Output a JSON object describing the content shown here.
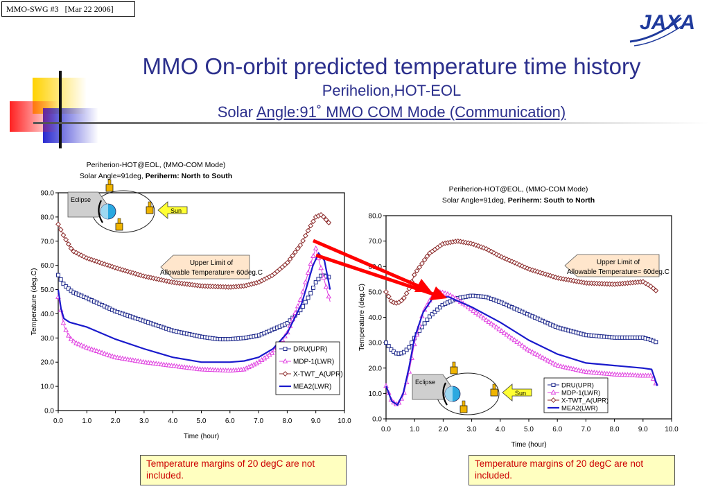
{
  "header": {
    "slide_tag": "MMO-SWG #3   [Mar 22 2006]",
    "logo_text": "JAXA",
    "title": "MMO On-orbit predicted temperature time history",
    "subtitle1": "Perihelion,HOT-EOL",
    "subtitle2_prefix": "Solar ",
    "subtitle2_underlined": "Angle:91˚  MMO COM Mode (Communication)"
  },
  "notes": {
    "left": "Temperature margins of 20 degC are not included.",
    "right": "Temperature margins of 20 degC are not included."
  },
  "chart_data": [
    {
      "type": "line",
      "title_line1": "Periherion-HOT@EOL, (MMO-COM Mode)",
      "title_line2_normal": "Solar Angle=91deg, ",
      "title_line2_bold": "Periherm: North to South",
      "xlabel": "Time (hour)",
      "ylabel": "Temperature (deg.C)",
      "xlim": [
        0,
        10
      ],
      "ylim": [
        0,
        90
      ],
      "xticks": [
        "0.0",
        "1.0",
        "2.0",
        "3.0",
        "4.0",
        "5.0",
        "6.0",
        "7.0",
        "8.0",
        "9.0",
        "10.0"
      ],
      "yticks": [
        "0.0",
        "10.0",
        "20.0",
        "30.0",
        "40.0",
        "50.0",
        "60.0",
        "70.0",
        "80.0",
        "90.0"
      ],
      "legend_position": "bottom-right",
      "annotation": "Upper Limit of Allowable Temperature= 60deg.C",
      "inset": {
        "eclipse": "Eclipse",
        "sun": "Sun"
      },
      "series": [
        {
          "name": "DRU(UPR)",
          "color": "#1f2a8c",
          "marker": "square",
          "x": [
            0,
            0.2,
            0.5,
            1,
            2,
            3,
            4,
            5,
            5.6,
            6,
            6.5,
            7,
            7.5,
            8,
            8.5,
            8.8,
            9,
            9.2,
            9.5
          ],
          "y": [
            56,
            52,
            49,
            46.5,
            41,
            37,
            33,
            30.5,
            29.5,
            29.5,
            30,
            31,
            33.5,
            36,
            42,
            48,
            53,
            56,
            55
          ]
        },
        {
          "name": "MDP-1(LWR)",
          "color": "#e040e0",
          "marker": "triangle",
          "x": [
            0,
            0.2,
            0.4,
            0.6,
            1,
            1.5,
            2,
            3,
            4,
            5,
            6,
            6.5,
            7,
            7.5,
            8,
            8.5,
            8.8,
            9,
            9.2,
            9.5
          ],
          "y": [
            47,
            35,
            30,
            28,
            26,
            24,
            22,
            20,
            18.5,
            17,
            16.5,
            17,
            20,
            24,
            32,
            47,
            60,
            67,
            58,
            45
          ]
        },
        {
          "name": "X-TWT_A(UPR)",
          "color": "#8b2a2a",
          "marker": "diamond",
          "x": [
            0,
            0.2,
            0.5,
            1,
            2,
            3,
            4,
            5,
            6,
            6.5,
            7,
            7.5,
            8,
            8.5,
            8.8,
            9,
            9.2,
            9.5
          ],
          "y": [
            77,
            72,
            66,
            63,
            59,
            55.5,
            53,
            51.5,
            51,
            51.5,
            53,
            56,
            61,
            69,
            76,
            80,
            81,
            77
          ]
        },
        {
          "name": "MEA2(LWR)",
          "color": "#1a1acc",
          "marker": "none",
          "x": [
            0,
            0.1,
            0.2,
            0.4,
            1,
            2,
            3,
            4,
            5,
            6,
            6.5,
            7,
            7.5,
            8,
            8.5,
            8.9,
            9.1,
            9.3,
            9.5
          ],
          "y": [
            50,
            42,
            38,
            36.5,
            34.5,
            29.5,
            25.5,
            22,
            20,
            20,
            20.5,
            22,
            25.5,
            32,
            44,
            60,
            65,
            62,
            50
          ]
        }
      ]
    },
    {
      "type": "line",
      "title_line1": "Periherion-HOT@EOL, (MMO-COM Mode)",
      "title_line2_normal": "Solar Angle=91deg, ",
      "title_line2_bold": "Periherm: South to North",
      "xlabel": "Time (hour)",
      "ylabel": "Temperature (deg.C)",
      "xlim": [
        0,
        10
      ],
      "ylim": [
        0,
        80
      ],
      "xticks": [
        "0.0",
        "1.0",
        "2.0",
        "3.0",
        "4.0",
        "5.0",
        "6.0",
        "7.0",
        "8.0",
        "9.0",
        "10.0"
      ],
      "yticks": [
        "0.0",
        "10.0",
        "20.0",
        "30.0",
        "40.0",
        "50.0",
        "60.0",
        "70.0",
        "80.0"
      ],
      "legend_position": "bottom-right",
      "annotation": "Upper Limit of Allowable Temperature= 60deg.C",
      "inset": {
        "eclipse": "Eclipse",
        "sun": "Sun"
      },
      "series": [
        {
          "name": "DRU(UPR)",
          "color": "#1f2a8c",
          "marker": "square",
          "x": [
            0,
            0.2,
            0.4,
            0.6,
            0.8,
            1,
            1.5,
            2,
            2.5,
            3,
            3.5,
            4,
            5,
            6,
            7,
            8,
            9,
            9.3,
            9.5
          ],
          "y": [
            30,
            27,
            25.5,
            26,
            28,
            32,
            40,
            45,
            47.5,
            48.5,
            48,
            46,
            41,
            36,
            33,
            32,
            32,
            31,
            30
          ]
        },
        {
          "name": "MDP-1(LWR)",
          "color": "#e040e0",
          "marker": "triangle",
          "x": [
            0,
            0.2,
            0.4,
            0.6,
            0.8,
            1,
            1.3,
            1.6,
            1.9,
            2.2,
            2.5,
            3,
            4,
            5,
            6,
            7,
            8,
            9,
            9.3,
            9.5
          ],
          "y": [
            13,
            7,
            5.5,
            9,
            18,
            30,
            42,
            48,
            50,
            49,
            47,
            43,
            35,
            27,
            21,
            18.5,
            17.5,
            17,
            17,
            13
          ]
        },
        {
          "name": "X-TWT_A(UPR)",
          "color": "#8b2a2a",
          "marker": "diamond",
          "x": [
            0,
            0.2,
            0.4,
            0.6,
            0.8,
            1,
            1.5,
            2,
            2.5,
            3,
            3.5,
            4,
            5,
            6,
            7,
            8,
            9,
            9.3,
            9.5
          ],
          "y": [
            50,
            46,
            45.5,
            47,
            51,
            57,
            65,
            69,
            70,
            69,
            67,
            64,
            59,
            55.5,
            53.5,
            53,
            54,
            52,
            50
          ]
        },
        {
          "name": "MEA2(LWR)",
          "color": "#1a1acc",
          "marker": "none",
          "x": [
            0,
            0.2,
            0.4,
            0.6,
            0.8,
            1,
            1.3,
            1.6,
            1.9,
            2.2,
            2.5,
            3,
            4,
            5,
            6,
            7,
            8,
            9,
            9.3,
            9.5
          ],
          "y": [
            13,
            7,
            5.5,
            10,
            20,
            32,
            42,
            47,
            48,
            48,
            46.5,
            44,
            38,
            31,
            25.5,
            22,
            21,
            20,
            19.5,
            13
          ]
        }
      ]
    }
  ]
}
